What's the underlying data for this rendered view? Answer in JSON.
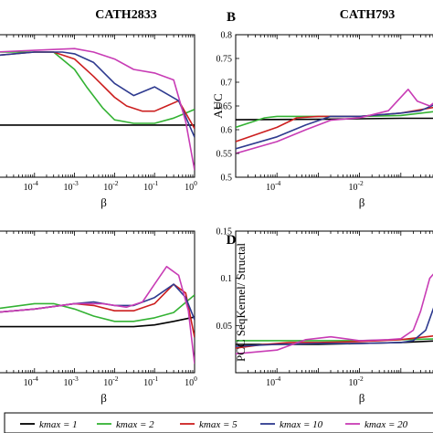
{
  "chart_data": [
    {
      "id": "A",
      "type": "line",
      "title": "CATH2833",
      "letter": "",
      "xlabel": "β",
      "ylabel": "",
      "x_scale": "log",
      "xlim": [
        1e-05,
        1
      ],
      "x_ticks": [
        {
          "v": 0.0001,
          "b": "10",
          "e": "-4"
        },
        {
          "v": 0.001,
          "b": "10",
          "e": "-3"
        },
        {
          "v": 0.01,
          "b": "10",
          "e": "-2"
        },
        {
          "v": 0.1,
          "b": "10",
          "e": "-1"
        },
        {
          "v": 1,
          "b": "10",
          "e": "0"
        }
      ],
      "ylim": [
        0.46,
        0.87
      ],
      "y_ticks": [],
      "series": [
        {
          "name": "kmax = 1",
          "color": "#000000",
          "x": [
            1e-05,
            0.0001,
            0.001,
            0.01,
            0.1,
            0.3,
            1
          ],
          "y": [
            0.61,
            0.61,
            0.61,
            0.61,
            0.61,
            0.61,
            0.61
          ]
        },
        {
          "name": "kmax = 2",
          "color": "#33b233",
          "x": [
            1e-05,
            0.0001,
            0.0003,
            0.001,
            0.002,
            0.005,
            0.01,
            0.03,
            0.1,
            0.3,
            1
          ],
          "y": [
            0.82,
            0.82,
            0.82,
            0.77,
            0.72,
            0.66,
            0.625,
            0.615,
            0.615,
            0.63,
            0.655
          ]
        },
        {
          "name": "kmax = 5",
          "color": "#cc1f1f",
          "x": [
            1e-05,
            0.0001,
            0.0003,
            0.001,
            0.003,
            0.01,
            0.02,
            0.05,
            0.1,
            0.2,
            0.4,
            1
          ],
          "y": [
            0.81,
            0.82,
            0.82,
            0.8,
            0.75,
            0.69,
            0.665,
            0.65,
            0.65,
            0.665,
            0.68,
            0.6
          ]
        },
        {
          "name": "kmax = 10",
          "color": "#2e3a8f",
          "x": [
            1e-05,
            0.0001,
            0.0005,
            0.001,
            0.003,
            0.01,
            0.03,
            0.1,
            0.2,
            0.4,
            1
          ],
          "y": [
            0.81,
            0.82,
            0.82,
            0.815,
            0.79,
            0.73,
            0.695,
            0.72,
            0.7,
            0.68,
            0.575
          ]
        },
        {
          "name": "kmax = 20",
          "color": "#c83cb5",
          "x": [
            1e-05,
            0.0001,
            0.001,
            0.003,
            0.01,
            0.03,
            0.1,
            0.3,
            0.6,
            1
          ],
          "y": [
            0.82,
            0.825,
            0.83,
            0.82,
            0.8,
            0.77,
            0.76,
            0.74,
            0.62,
            0.48
          ]
        }
      ]
    },
    {
      "id": "B",
      "type": "line",
      "title": "CATH793",
      "letter": "B",
      "xlabel": "β",
      "ylabel": "AUC",
      "x_scale": "log",
      "xlim": [
        1e-05,
        1
      ],
      "x_ticks": [
        {
          "v": 0.0001,
          "b": "10",
          "e": "-4"
        },
        {
          "v": 0.01,
          "b": "10",
          "e": "-2"
        }
      ],
      "ylim": [
        0.5,
        0.8
      ],
      "y_ticks": [
        {
          "v": 0.5,
          "t": "0.5"
        },
        {
          "v": 0.55,
          "t": "0.55"
        },
        {
          "v": 0.6,
          "t": "0.6"
        },
        {
          "v": 0.65,
          "t": "0.65"
        },
        {
          "v": 0.7,
          "t": "0.7"
        },
        {
          "v": 0.75,
          "t": "0.75"
        },
        {
          "v": 0.8,
          "t": "0.8"
        }
      ],
      "series": [
        {
          "name": "kmax = 1",
          "color": "#000000",
          "x": [
            1e-05,
            0.001,
            0.01,
            0.1,
            1
          ],
          "y": [
            0.621,
            0.622,
            0.623,
            0.624,
            0.624
          ]
        },
        {
          "name": "kmax = 2",
          "color": "#33b233",
          "x": [
            1e-05,
            5e-05,
            0.0001,
            0.001,
            0.01,
            0.1,
            1
          ],
          "y": [
            0.605,
            0.625,
            0.628,
            0.628,
            0.628,
            0.63,
            0.64
          ]
        },
        {
          "name": "kmax = 5",
          "color": "#cc1f1f",
          "x": [
            1e-05,
            0.0001,
            0.0003,
            0.001,
            0.01,
            0.1,
            1
          ],
          "y": [
            0.575,
            0.605,
            0.625,
            0.628,
            0.628,
            0.635,
            0.65
          ]
        },
        {
          "name": "kmax = 10",
          "color": "#2e3a8f",
          "x": [
            1e-05,
            0.0001,
            0.0005,
            0.002,
            0.01,
            0.1,
            0.3,
            1
          ],
          "y": [
            0.56,
            0.585,
            0.61,
            0.628,
            0.628,
            0.635,
            0.64,
            0.66
          ]
        },
        {
          "name": "kmax = 20",
          "color": "#c83cb5",
          "x": [
            1e-05,
            0.0001,
            0.0005,
            0.002,
            0.01,
            0.05,
            0.15,
            0.25,
            0.5,
            1
          ],
          "y": [
            0.55,
            0.575,
            0.6,
            0.62,
            0.625,
            0.64,
            0.685,
            0.66,
            0.65,
            0.67
          ]
        }
      ]
    },
    {
      "id": "C",
      "type": "line",
      "title": "",
      "letter": "",
      "xlabel": "β",
      "ylabel": "",
      "x_scale": "log",
      "xlim": [
        1e-05,
        1
      ],
      "x_ticks": [
        {
          "v": 0.0001,
          "b": "10",
          "e": "-4"
        },
        {
          "v": 0.001,
          "b": "10",
          "e": "-3"
        },
        {
          "v": 0.01,
          "b": "10",
          "e": "-2"
        },
        {
          "v": 0.1,
          "b": "10",
          "e": "-1"
        },
        {
          "v": 1,
          "b": "10",
          "e": "0"
        }
      ],
      "ylim": [
        0.0,
        0.16
      ],
      "y_ticks": [],
      "series": [
        {
          "name": "kmax = 1",
          "color": "#000000",
          "x": [
            1e-05,
            0.001,
            0.01,
            0.03,
            0.1,
            0.3,
            1
          ],
          "y": [
            0.052,
            0.052,
            0.052,
            0.052,
            0.054,
            0.058,
            0.063
          ]
        },
        {
          "name": "kmax = 2",
          "color": "#33b233",
          "x": [
            1e-05,
            0.0001,
            0.0003,
            0.001,
            0.003,
            0.01,
            0.03,
            0.1,
            0.3,
            1
          ],
          "y": [
            0.072,
            0.078,
            0.078,
            0.072,
            0.064,
            0.058,
            0.058,
            0.062,
            0.068,
            0.088
          ]
        },
        {
          "name": "kmax = 5",
          "color": "#cc1f1f",
          "x": [
            1e-05,
            0.0001,
            0.001,
            0.003,
            0.01,
            0.03,
            0.1,
            0.3,
            0.6,
            1
          ],
          "y": [
            0.068,
            0.072,
            0.078,
            0.076,
            0.07,
            0.07,
            0.078,
            0.1,
            0.09,
            0.04
          ]
        },
        {
          "name": "kmax = 10",
          "color": "#2e3a8f",
          "x": [
            1e-05,
            0.0001,
            0.001,
            0.003,
            0.01,
            0.03,
            0.1,
            0.3,
            0.6,
            1
          ],
          "y": [
            0.068,
            0.072,
            0.078,
            0.08,
            0.076,
            0.076,
            0.085,
            0.1,
            0.085,
            0.06
          ]
        },
        {
          "name": "kmax = 20",
          "color": "#c83cb5",
          "x": [
            1e-05,
            0.0001,
            0.001,
            0.005,
            0.02,
            0.05,
            0.1,
            0.2,
            0.4,
            0.7,
            1
          ],
          "y": [
            0.068,
            0.072,
            0.078,
            0.078,
            0.074,
            0.08,
            0.1,
            0.12,
            0.11,
            0.07,
            0.01
          ]
        }
      ]
    },
    {
      "id": "D",
      "type": "line",
      "title": "",
      "letter": "D",
      "xlabel": "β",
      "ylabel": "PCC SeqKernel/ Structal",
      "x_scale": "log",
      "xlim": [
        1e-05,
        1
      ],
      "x_ticks": [
        {
          "v": 0.0001,
          "b": "10",
          "e": "-4"
        },
        {
          "v": 0.01,
          "b": "10",
          "e": "-2"
        }
      ],
      "ylim": [
        0.0,
        0.15
      ],
      "y_ticks": [
        {
          "v": 0.05,
          "t": "0.05"
        },
        {
          "v": 0.1,
          "t": "0.1"
        },
        {
          "v": 0.15,
          "t": "0.15"
        }
      ],
      "series": [
        {
          "name": "kmax = 1",
          "color": "#000000",
          "x": [
            1e-05,
            0.001,
            0.01,
            0.1,
            1
          ],
          "y": [
            0.03,
            0.03,
            0.031,
            0.032,
            0.034
          ]
        },
        {
          "name": "kmax = 2",
          "color": "#33b233",
          "x": [
            1e-05,
            0.0001,
            0.001,
            0.01,
            0.1,
            1
          ],
          "y": [
            0.034,
            0.034,
            0.034,
            0.034,
            0.035,
            0.036
          ]
        },
        {
          "name": "kmax = 5",
          "color": "#cc1f1f",
          "x": [
            1e-05,
            5e-05,
            0.0002,
            0.001,
            0.01,
            0.1,
            1
          ],
          "y": [
            0.026,
            0.03,
            0.032,
            0.032,
            0.033,
            0.035,
            0.04
          ]
        },
        {
          "name": "kmax = 10",
          "color": "#2e3a8f",
          "x": [
            1e-05,
            0.0001,
            0.001,
            0.01,
            0.1,
            0.2,
            0.4,
            0.7,
            1
          ],
          "y": [
            0.028,
            0.03,
            0.031,
            0.031,
            0.032,
            0.034,
            0.045,
            0.075,
            0.08
          ]
        },
        {
          "name": "kmax = 20",
          "color": "#c83cb5",
          "x": [
            1e-05,
            0.0001,
            0.0005,
            0.002,
            0.01,
            0.05,
            0.1,
            0.2,
            0.3,
            0.5,
            1
          ],
          "y": [
            0.02,
            0.024,
            0.035,
            0.038,
            0.034,
            0.035,
            0.036,
            0.045,
            0.065,
            0.1,
            0.115
          ]
        }
      ]
    }
  ],
  "legend": {
    "items": [
      {
        "label": "kmax = 1",
        "color": "#000000"
      },
      {
        "label": "kmax = 2",
        "color": "#33b233"
      },
      {
        "label": "kmax = 5",
        "color": "#cc1f1f"
      },
      {
        "label": "kmax = 10",
        "color": "#2e3a8f"
      },
      {
        "label": "kmax = 20",
        "color": "#c83cb5"
      }
    ]
  }
}
